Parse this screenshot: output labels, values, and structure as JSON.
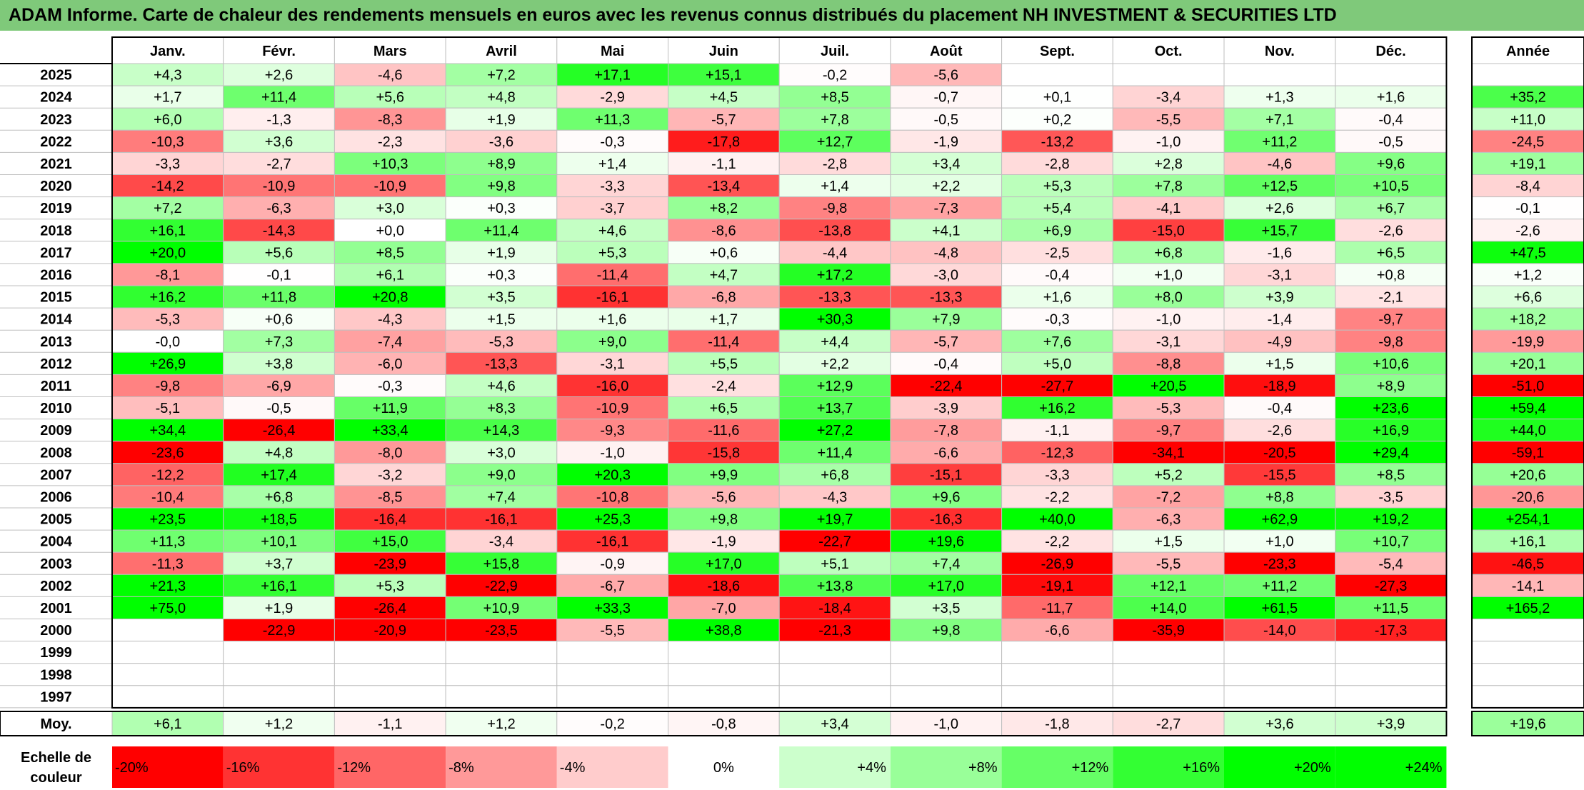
{
  "title": "ADAM Informe. Carte de chaleur des rendements mensuels en euros avec les revenus connus distribués du placement NH INVESTMENT & SECURITIES LTD",
  "colors": {
    "title_bg": "#7fc97a",
    "negative_strong": "#ff0000",
    "neutral": "#ffffff",
    "positive_strong": "#00ff00",
    "grid": "#bfbfbf",
    "frame": "#000000"
  },
  "chart_data": {
    "type": "heatmap",
    "months": [
      "Janv.",
      "Févr.",
      "Mars",
      "Avril",
      "Mai",
      "Juin",
      "Juil.",
      "Août",
      "Sept.",
      "Oct.",
      "Nov.",
      "Déc."
    ],
    "year_header": "Année",
    "average_label": "Moy.",
    "scale_label": [
      "Echelle de",
      "couleur"
    ],
    "rows": [
      {
        "year": "2025",
        "months": [
          "+4,3",
          "+2,6",
          "-4,6",
          "+7,2",
          "+17,1",
          "+15,1",
          "-0,2",
          "-5,6",
          "",
          "",
          "",
          ""
        ],
        "annual": ""
      },
      {
        "year": "2024",
        "months": [
          "+1,7",
          "+11,4",
          "+5,6",
          "+4,8",
          "-2,9",
          "+4,5",
          "+8,5",
          "-0,7",
          "+0,1",
          "-3,4",
          "+1,3",
          "+1,6"
        ],
        "annual": "+35,2"
      },
      {
        "year": "2023",
        "months": [
          "+6,0",
          "-1,3",
          "-8,3",
          "+1,9",
          "+11,3",
          "-5,7",
          "+7,8",
          "-0,5",
          "+0,2",
          "-5,5",
          "+7,1",
          "-0,4"
        ],
        "annual": "+11,0"
      },
      {
        "year": "2022",
        "months": [
          "-10,3",
          "+3,6",
          "-2,3",
          "-3,6",
          "-0,3",
          "-17,8",
          "+12,7",
          "-1,9",
          "-13,2",
          "-1,0",
          "+11,2",
          "-0,5"
        ],
        "annual": "-24,5"
      },
      {
        "year": "2021",
        "months": [
          "-3,3",
          "-2,7",
          "+10,3",
          "+8,9",
          "+1,4",
          "-1,1",
          "-2,8",
          "+3,4",
          "-2,8",
          "+2,8",
          "-4,6",
          "+9,6"
        ],
        "annual": "+19,1"
      },
      {
        "year": "2020",
        "months": [
          "-14,2",
          "-10,9",
          "-10,9",
          "+9,8",
          "-3,3",
          "-13,4",
          "+1,4",
          "+2,2",
          "+5,3",
          "+7,8",
          "+12,5",
          "+10,5"
        ],
        "annual": "-8,4"
      },
      {
        "year": "2019",
        "months": [
          "+7,2",
          "-6,3",
          "+3,0",
          "+0,3",
          "-3,7",
          "+8,2",
          "-9,8",
          "-7,3",
          "+5,4",
          "-4,1",
          "+2,6",
          "+6,7"
        ],
        "annual": "-0,1"
      },
      {
        "year": "2018",
        "months": [
          "+16,1",
          "-14,3",
          "+0,0",
          "+11,4",
          "+4,6",
          "-8,6",
          "-13,8",
          "+4,1",
          "+6,9",
          "-15,0",
          "+15,7",
          "-2,6"
        ],
        "annual": "-2,6"
      },
      {
        "year": "2017",
        "months": [
          "+20,0",
          "+5,6",
          "+8,5",
          "+1,9",
          "+5,3",
          "+0,6",
          "-4,4",
          "-4,8",
          "-2,5",
          "+6,8",
          "-1,6",
          "+6,5"
        ],
        "annual": "+47,5"
      },
      {
        "year": "2016",
        "months": [
          "-8,1",
          "-0,1",
          "+6,1",
          "+0,3",
          "-11,4",
          "+4,7",
          "+17,2",
          "-3,0",
          "-0,4",
          "+1,0",
          "-3,1",
          "+0,8"
        ],
        "annual": "+1,2"
      },
      {
        "year": "2015",
        "months": [
          "+16,2",
          "+11,8",
          "+20,8",
          "+3,5",
          "-16,1",
          "-6,8",
          "-13,3",
          "-13,3",
          "+1,6",
          "+8,0",
          "+3,9",
          "-2,1"
        ],
        "annual": "+6,6"
      },
      {
        "year": "2014",
        "months": [
          "-5,3",
          "+0,6",
          "-4,3",
          "+1,5",
          "+1,6",
          "+1,7",
          "+30,3",
          "+7,9",
          "-0,3",
          "-1,0",
          "-1,4",
          "-9,7"
        ],
        "annual": "+18,2"
      },
      {
        "year": "2013",
        "months": [
          "-0,0",
          "+7,3",
          "-7,4",
          "-5,3",
          "+9,0",
          "-11,4",
          "+4,4",
          "-5,7",
          "+7,6",
          "-3,1",
          "-4,9",
          "-9,8"
        ],
        "annual": "-19,9"
      },
      {
        "year": "2012",
        "months": [
          "+26,9",
          "+3,8",
          "-6,0",
          "-13,3",
          "-3,1",
          "+5,5",
          "+2,2",
          "-0,4",
          "+5,0",
          "-8,8",
          "+1,5",
          "+10,6"
        ],
        "annual": "+20,1"
      },
      {
        "year": "2011",
        "months": [
          "-9,8",
          "-6,9",
          "-0,3",
          "+4,6",
          "-16,0",
          "-2,4",
          "+12,9",
          "-22,4",
          "-27,7",
          "+20,5",
          "-18,9",
          "+8,9"
        ],
        "annual": "-51,0"
      },
      {
        "year": "2010",
        "months": [
          "-5,1",
          "-0,5",
          "+11,9",
          "+8,3",
          "-10,9",
          "+6,5",
          "+13,7",
          "-3,9",
          "+16,2",
          "-5,3",
          "-0,4",
          "+23,6"
        ],
        "annual": "+59,4"
      },
      {
        "year": "2009",
        "months": [
          "+34,4",
          "-26,4",
          "+33,4",
          "+14,3",
          "-9,3",
          "-11,6",
          "+27,2",
          "-7,8",
          "-1,1",
          "-9,7",
          "-2,6",
          "+16,9"
        ],
        "annual": "+44,0"
      },
      {
        "year": "2008",
        "months": [
          "-23,6",
          "+4,8",
          "-8,0",
          "+3,0",
          "-1,0",
          "-15,8",
          "+11,4",
          "-6,6",
          "-12,3",
          "-34,1",
          "-20,5",
          "+29,4"
        ],
        "annual": "-59,1"
      },
      {
        "year": "2007",
        "months": [
          "-12,2",
          "+17,4",
          "-3,2",
          "+9,0",
          "+20,3",
          "+9,9",
          "+6,8",
          "-15,1",
          "-3,3",
          "+5,2",
          "-15,5",
          "+8,5"
        ],
        "annual": "+20,6"
      },
      {
        "year": "2006",
        "months": [
          "-10,4",
          "+6,8",
          "-8,5",
          "+7,4",
          "-10,8",
          "-5,6",
          "-4,3",
          "+9,6",
          "-2,2",
          "-7,2",
          "+8,8",
          "-3,5"
        ],
        "annual": "-20,6"
      },
      {
        "year": "2005",
        "months": [
          "+23,5",
          "+18,5",
          "-16,4",
          "-16,1",
          "+25,3",
          "+9,8",
          "+19,7",
          "-16,3",
          "+40,0",
          "-6,3",
          "+62,9",
          "+19,2"
        ],
        "annual": "+254,1"
      },
      {
        "year": "2004",
        "months": [
          "+11,3",
          "+10,1",
          "+15,0",
          "-3,4",
          "-16,1",
          "-1,9",
          "-22,7",
          "+19,6",
          "-2,2",
          "+1,5",
          "+1,0",
          "+10,7"
        ],
        "annual": "+16,1"
      },
      {
        "year": "2003",
        "months": [
          "-11,3",
          "+3,7",
          "-23,9",
          "+15,8",
          "-0,9",
          "+17,0",
          "+5,1",
          "+7,4",
          "-26,9",
          "-5,5",
          "-23,3",
          "-5,4"
        ],
        "annual": "-46,5"
      },
      {
        "year": "2002",
        "months": [
          "+21,3",
          "+16,1",
          "+5,3",
          "-22,9",
          "-6,7",
          "-18,6",
          "+13,8",
          "+17,0",
          "-19,1",
          "+12,1",
          "+11,2",
          "-27,3"
        ],
        "annual": "-14,1"
      },
      {
        "year": "2001",
        "months": [
          "+75,0",
          "+1,9",
          "-26,4",
          "+10,9",
          "+33,3",
          "-7,0",
          "-18,4",
          "+3,5",
          "-11,7",
          "+14,0",
          "+61,5",
          "+11,5"
        ],
        "annual": "+165,2"
      },
      {
        "year": "2000",
        "months": [
          "",
          "-22,9",
          "-20,9",
          "-23,5",
          "-5,5",
          "+38,8",
          "-21,3",
          "+9,8",
          "-6,6",
          "-35,9",
          "-14,0",
          "-17,3"
        ],
        "annual": ""
      },
      {
        "year": "1999",
        "months": [
          "",
          "",
          "",
          "",
          "",
          "",
          "",
          "",
          "",
          "",
          "",
          ""
        ],
        "annual": ""
      },
      {
        "year": "1998",
        "months": [
          "",
          "",
          "",
          "",
          "",
          "",
          "",
          "",
          "",
          "",
          "",
          ""
        ],
        "annual": ""
      },
      {
        "year": "1997",
        "months": [
          "",
          "",
          "",
          "",
          "",
          "",
          "",
          "",
          "",
          "",
          "",
          ""
        ],
        "annual": ""
      }
    ],
    "averages": [
      "+6,1",
      "+1,2",
      "-1,1",
      "+1,2",
      "-0,2",
      "-0,8",
      "+3,4",
      "-1,0",
      "-1,8",
      "-2,7",
      "+3,6",
      "+3,9"
    ],
    "average_annual": "+19,6",
    "scale": [
      {
        "label": "-20%",
        "value": -20
      },
      {
        "label": "-16%",
        "value": -16
      },
      {
        "label": "-12%",
        "value": -12
      },
      {
        "label": "-8%",
        "value": -8
      },
      {
        "label": "-4%",
        "value": -4
      },
      {
        "label": "0%",
        "value": 0
      },
      {
        "label": "+4%",
        "value": 4
      },
      {
        "label": "+8%",
        "value": 8
      },
      {
        "label": "+12%",
        "value": 12
      },
      {
        "label": "+16%",
        "value": 16
      },
      {
        "label": "+20%",
        "value": 20
      },
      {
        "label": "+24%",
        "value": 24
      }
    ]
  }
}
